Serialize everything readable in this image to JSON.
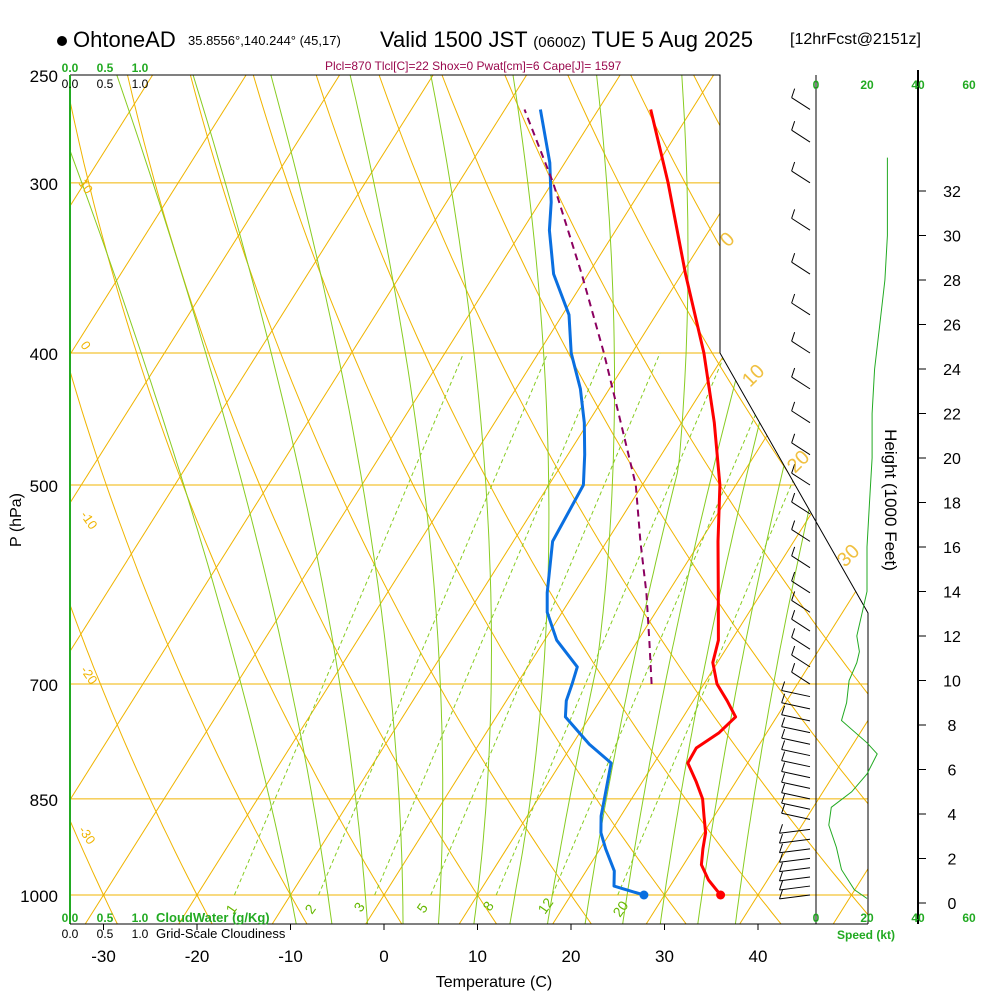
{
  "header": {
    "station": "OhtoneAD",
    "coords": "35.8556°,140.244° (45,17)",
    "valid_main": "Valid 1500 JST",
    "valid_utc": "(0600Z)",
    "valid_date": "TUE 5 Aug 2025",
    "forecast": "[12hrFcst@2151z]",
    "params": "Plcl=870 Tlcl[C]=22 Shox=0 Pwat[cm]=6 Cape[J]= 1597"
  },
  "colors": {
    "temperature": "#ff0000",
    "dewpoint": "#0a6fe0",
    "parcel": "#8b0060",
    "isobar": "#f0b400",
    "dry_adiabat": "#f0b400",
    "moist_adiabat": "#88cc22",
    "mixing_ratio": "#88cc22",
    "green_text": "#22aa22",
    "params_text": "#9a0a4e"
  },
  "chart_data": [
    {
      "type": "line",
      "title": "Skew-T log-P sounding",
      "xlabel": "Temperature (C)",
      "ylabel": "P (hPa)",
      "x_ticks": [
        -30,
        -20,
        -10,
        0,
        10,
        20,
        30,
        40
      ],
      "y_ticks": [
        250,
        300,
        400,
        500,
        700,
        850,
        1000
      ],
      "series": [
        {
          "name": "Temperature",
          "color": "#ff0000",
          "points": [
            {
              "p": 1000,
              "t": 36.0
            },
            {
              "p": 975,
              "t": 33.7
            },
            {
              "p": 950,
              "t": 31.9
            },
            {
              "p": 925,
              "t": 31.0
            },
            {
              "p": 900,
              "t": 30.2
            },
            {
              "p": 875,
              "t": 28.9
            },
            {
              "p": 850,
              "t": 27.6
            },
            {
              "p": 825,
              "t": 25.7
            },
            {
              "p": 800,
              "t": 23.6
            },
            {
              "p": 780,
              "t": 23.5
            },
            {
              "p": 760,
              "t": 24.9
            },
            {
              "p": 740,
              "t": 25.6
            },
            {
              "p": 720,
              "t": 23.6
            },
            {
              "p": 700,
              "t": 21.4
            },
            {
              "p": 675,
              "t": 19.5
            },
            {
              "p": 650,
              "t": 18.6
            },
            {
              "p": 600,
              "t": 15.4
            },
            {
              "p": 550,
              "t": 11.9
            },
            {
              "p": 500,
              "t": 8.3
            },
            {
              "p": 450,
              "t": 3.5
            },
            {
              "p": 400,
              "t": -2.3
            },
            {
              "p": 350,
              "t": -9.6
            },
            {
              "p": 300,
              "t": -17.6
            },
            {
              "p": 265,
              "t": -24.4
            }
          ]
        },
        {
          "name": "Dewpoint",
          "color": "#0a6fe0",
          "points": [
            {
              "p": 1000,
              "t": 27.8
            },
            {
              "p": 985,
              "t": 24.0
            },
            {
              "p": 960,
              "t": 23.0
            },
            {
              "p": 925,
              "t": 20.6
            },
            {
              "p": 900,
              "t": 19.0
            },
            {
              "p": 875,
              "t": 17.9
            },
            {
              "p": 850,
              "t": 17.1
            },
            {
              "p": 800,
              "t": 15.4
            },
            {
              "p": 775,
              "t": 11.8
            },
            {
              "p": 740,
              "t": 7.4
            },
            {
              "p": 720,
              "t": 6.4
            },
            {
              "p": 700,
              "t": 5.9
            },
            {
              "p": 680,
              "t": 5.3
            },
            {
              "p": 650,
              "t": 1.3
            },
            {
              "p": 620,
              "t": -1.6
            },
            {
              "p": 600,
              "t": -2.9
            },
            {
              "p": 550,
              "t": -5.8
            },
            {
              "p": 500,
              "t": -6.3
            },
            {
              "p": 475,
              "t": -8.2
            },
            {
              "p": 450,
              "t": -10.4
            },
            {
              "p": 425,
              "t": -13.1
            },
            {
              "p": 400,
              "t": -16.5
            },
            {
              "p": 375,
              "t": -19.3
            },
            {
              "p": 350,
              "t": -23.7
            },
            {
              "p": 325,
              "t": -27.1
            },
            {
              "p": 310,
              "t": -28.8
            },
            {
              "p": 290,
              "t": -31.6
            },
            {
              "p": 265,
              "t": -36.2
            }
          ]
        },
        {
          "name": "Parcel",
          "color": "#8b0060",
          "points": [
            {
              "p": 700,
              "t": 14.4
            },
            {
              "p": 650,
              "t": 11.2
            },
            {
              "p": 600,
              "t": 7.7
            },
            {
              "p": 550,
              "t": 3.6
            },
            {
              "p": 500,
              "t": -0.7
            },
            {
              "p": 450,
              "t": -6.5
            },
            {
              "p": 400,
              "t": -13.0
            },
            {
              "p": 350,
              "t": -20.7
            },
            {
              "p": 300,
              "t": -29.9
            },
            {
              "p": 265,
              "t": -37.9
            }
          ]
        }
      ],
      "markers": [
        {
          "name": "surface-temperature",
          "p": 1000,
          "t": 36.0,
          "color": "#ff0000"
        },
        {
          "name": "surface-dewpoint",
          "p": 1000,
          "t": 27.8,
          "color": "#0a6fe0"
        }
      ],
      "dry_adiabat_labels": [
        "10",
        "0",
        "-10",
        "-20",
        "-30"
      ],
      "moist_adiabat_labels": [
        "0",
        "10",
        "20",
        "30"
      ],
      "mixing_ratio_labels": [
        "1",
        "2",
        "3",
        "5",
        "8",
        "12",
        "20"
      ]
    },
    {
      "type": "line",
      "title": "Wind speed profile",
      "xlabel": "Speed (kt)",
      "x_ticks": [
        0,
        20,
        40,
        60
      ],
      "y_label": "Height (1000 Feet)",
      "y_ticks": [
        0,
        2,
        4,
        6,
        8,
        10,
        12,
        14,
        16,
        18,
        20,
        22,
        24,
        26,
        28,
        30,
        32
      ],
      "series": [
        {
          "name": "Wind speed",
          "color": "#22aa22",
          "points": [
            {
              "h": 0.2,
              "s": 20
            },
            {
              "h": 0.6,
              "s": 15
            },
            {
              "h": 1.5,
              "s": 10
            },
            {
              "h": 2.5,
              "s": 8
            },
            {
              "h": 3.5,
              "s": 5
            },
            {
              "h": 4.3,
              "s": 6
            },
            {
              "h": 5.0,
              "s": 14
            },
            {
              "h": 5.8,
              "s": 20
            },
            {
              "h": 6.7,
              "s": 24
            },
            {
              "h": 7.2,
              "s": 20
            },
            {
              "h": 8.2,
              "s": 10
            },
            {
              "h": 9.0,
              "s": 12
            },
            {
              "h": 10.0,
              "s": 13
            },
            {
              "h": 10.8,
              "s": 16
            },
            {
              "h": 11.3,
              "s": 17
            },
            {
              "h": 12.0,
              "s": 16
            },
            {
              "h": 13.0,
              "s": 18
            },
            {
              "h": 14.0,
              "s": 20
            },
            {
              "h": 16.0,
              "s": 20
            },
            {
              "h": 18.0,
              "s": 21
            },
            {
              "h": 20.0,
              "s": 22
            },
            {
              "h": 22.0,
              "s": 22
            },
            {
              "h": 24.0,
              "s": 23
            },
            {
              "h": 26.0,
              "s": 25
            },
            {
              "h": 28.0,
              "s": 27
            },
            {
              "h": 30.0,
              "s": 28
            },
            {
              "h": 32.0,
              "s": 28
            },
            {
              "h": 33.5,
              "s": 28
            }
          ]
        }
      ],
      "wind_barb_levels": [
        1000,
        985,
        970,
        955,
        940,
        925,
        910,
        895,
        880,
        865,
        850,
        835,
        820,
        805,
        790,
        775,
        760,
        745,
        730,
        715,
        700,
        680,
        660,
        640,
        620,
        600,
        575,
        550,
        525,
        500,
        475,
        450,
        425,
        400,
        375,
        350,
        325,
        300,
        280,
        265
      ]
    }
  ],
  "axis_labels": {
    "temperature": "Temperature (C)",
    "pressure": "P (hPa)",
    "height": "Height (1000 Feet)",
    "speed": "Speed (kt)"
  },
  "legends": {
    "cloudwater_ticks": [
      "0.0",
      "0.5",
      "1.0"
    ],
    "cloudwater_label": "CloudWater (g/Kg)",
    "cloudiness_ticks": [
      "0.0",
      "0.5",
      "1.0"
    ],
    "cloudiness_label": "Grid-Scale Cloudiness"
  }
}
